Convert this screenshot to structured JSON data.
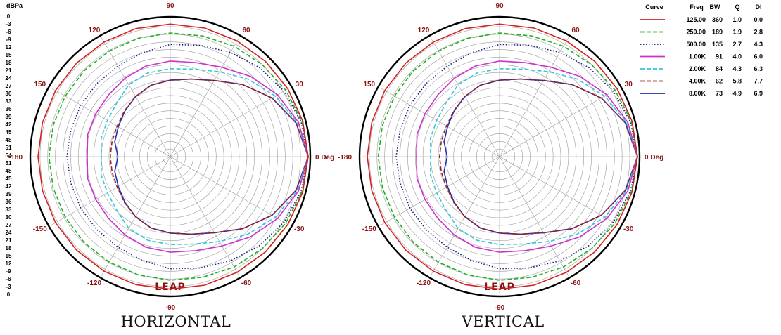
{
  "db_axis": {
    "unit": "dBPa",
    "ticks": [
      "0",
      "-3",
      "-6",
      "-9",
      "12",
      "15",
      "18",
      "21",
      "24",
      "27",
      "30",
      "33",
      "36",
      "39",
      "42",
      "45",
      "48",
      "51",
      "54",
      "51",
      "48",
      "45",
      "42",
      "39",
      "36",
      "33",
      "30",
      "27",
      "24",
      "21",
      "18",
      "15",
      "12",
      "-9",
      "-6",
      "-3",
      "0"
    ]
  },
  "angle_labels": [
    "90",
    "60",
    "30",
    "0 Deg",
    "-30",
    "-60",
    "-90",
    "-120",
    "-150",
    "-180",
    "150",
    "120"
  ],
  "logo_text": "LEAP",
  "legend": {
    "headers": [
      "Curve",
      "Freq",
      "BW",
      "Q",
      "DI"
    ],
    "rows": [
      {
        "freq": "125.00",
        "bw": "360",
        "q": "1.0",
        "di": "0.0",
        "color": "#d42020",
        "dash": "solid"
      },
      {
        "freq": "250.00",
        "bw": "189",
        "q": "1.9",
        "di": "2.8",
        "color": "#22b022",
        "dash": "dashed"
      },
      {
        "freq": "500.00",
        "bw": "135",
        "q": "2.7",
        "di": "4.3",
        "color": "#1a1a80",
        "dash": "dotted"
      },
      {
        "freq": "1.00K",
        "bw": "91",
        "q": "4.0",
        "di": "6.0",
        "color": "#d030d0",
        "dash": "solid"
      },
      {
        "freq": "2.00K",
        "bw": "84",
        "q": "4.3",
        "di": "6.3",
        "color": "#30c8d8",
        "dash": "dashed"
      },
      {
        "freq": "4.00K",
        "bw": "62",
        "q": "5.8",
        "di": "7.7",
        "color": "#a02020",
        "dash": "dashed"
      },
      {
        "freq": "8.00K",
        "bw": "73",
        "q": "4.9",
        "di": "6.9",
        "color": "#2030b0",
        "dash": "solid"
      }
    ]
  },
  "chart_data": [
    {
      "type": "polar",
      "caption": "HORIZONTAL",
      "r_unit": "dBPa",
      "r_range": [
        -54,
        0
      ],
      "theta_ticks_deg": [
        90,
        60,
        30,
        0,
        -30,
        -60,
        -90,
        -120,
        -150,
        -180,
        150,
        120
      ],
      "theta_samples_deg": [
        0,
        15,
        30,
        45,
        60,
        75,
        90,
        105,
        120,
        135,
        150,
        165,
        180
      ],
      "series": [
        {
          "name": "125.00",
          "values_db": [
            0,
            -0.3,
            -0.8,
            -1.2,
            -1.6,
            -1.8,
            -2,
            -2,
            -2.1,
            -2.1,
            -2.1,
            -2.2,
            -2.2
          ]
        },
        {
          "name": "250.00",
          "values_db": [
            0,
            -0.6,
            -1.8,
            -3,
            -4,
            -5,
            -5.5,
            -5.9,
            -6.2,
            -6.3,
            -6.5,
            -6.5,
            -6.5
          ]
        },
        {
          "name": "500.00",
          "values_db": [
            0,
            -1,
            -2.6,
            -4.6,
            -6.8,
            -8.8,
            -10,
            -11.8,
            -13,
            -13.4,
            -13.5,
            -13.7,
            -13.5
          ]
        },
        {
          "name": "1.00K",
          "values_db": [
            0,
            -2,
            -5.5,
            -9.5,
            -13.5,
            -15.8,
            -16.5,
            -17.2,
            -18.5,
            -19.8,
            -20.3,
            -20.5,
            -21.5
          ]
        },
        {
          "name": "2.00K",
          "values_db": [
            0,
            -2.5,
            -6.5,
            -11,
            -15.5,
            -18.5,
            -19.5,
            -20,
            -21.5,
            -24.3,
            -25.6,
            -26,
            -27
          ]
        },
        {
          "name": "4.00K",
          "values_db": [
            0,
            -3,
            -8,
            -14,
            -19.5,
            -22.5,
            -24,
            -25,
            -26.8,
            -28.6,
            -30,
            -30.4,
            -30.5
          ]
        },
        {
          "name": "8.00K",
          "values_db": [
            0,
            -3,
            -8,
            -14,
            -19.5,
            -22.5,
            -24,
            -25,
            -26.8,
            -28.8,
            -30.5,
            -31.5,
            -33.5
          ]
        }
      ]
    },
    {
      "type": "polar",
      "caption": "VERTICAL",
      "r_unit": "dBPa",
      "r_range": [
        -54,
        0
      ],
      "theta_ticks_deg": [
        90,
        60,
        30,
        0,
        -30,
        -60,
        -90,
        -120,
        -150,
        -180,
        150,
        120
      ],
      "theta_samples_deg": [
        0,
        15,
        30,
        45,
        60,
        75,
        90,
        105,
        120,
        135,
        150,
        165,
        180
      ],
      "series": [
        {
          "name": "125.00",
          "values_db": [
            0,
            -0.3,
            -0.8,
            -1.2,
            -1.6,
            -1.8,
            -2,
            -2,
            -2.1,
            -2.1,
            -2.1,
            -2.2,
            -2.2
          ]
        },
        {
          "name": "250.00",
          "values_db": [
            0,
            -0.6,
            -1.8,
            -3,
            -4,
            -5,
            -5.5,
            -5.9,
            -6.2,
            -6.3,
            -6.5,
            -6.5,
            -6.5
          ]
        },
        {
          "name": "500.00",
          "values_db": [
            0,
            -1,
            -2.6,
            -4.6,
            -6.8,
            -8.8,
            -10,
            -11.8,
            -13,
            -13.4,
            -13.5,
            -13.7,
            -13.5
          ]
        },
        {
          "name": "1.00K",
          "values_db": [
            0,
            -2,
            -5.5,
            -9.5,
            -13.5,
            -15.8,
            -16.5,
            -17.2,
            -18.5,
            -19.8,
            -20.3,
            -20.5,
            -21.5
          ]
        },
        {
          "name": "2.00K",
          "values_db": [
            0,
            -2.5,
            -6.5,
            -11,
            -15.5,
            -18.5,
            -19.5,
            -20,
            -21.5,
            -24.3,
            -25.6,
            -26,
            -27
          ]
        },
        {
          "name": "4.00K",
          "values_db": [
            0,
            -3,
            -8,
            -14,
            -19.5,
            -22.5,
            -24,
            -25,
            -26.8,
            -28.6,
            -30,
            -30.4,
            -30.5
          ]
        },
        {
          "name": "8.00K",
          "values_db": [
            0,
            -3,
            -8,
            -14,
            -19.5,
            -22.5,
            -24,
            -25,
            -26.8,
            -28.8,
            -30.5,
            -31.5,
            -33.5
          ]
        }
      ]
    }
  ]
}
